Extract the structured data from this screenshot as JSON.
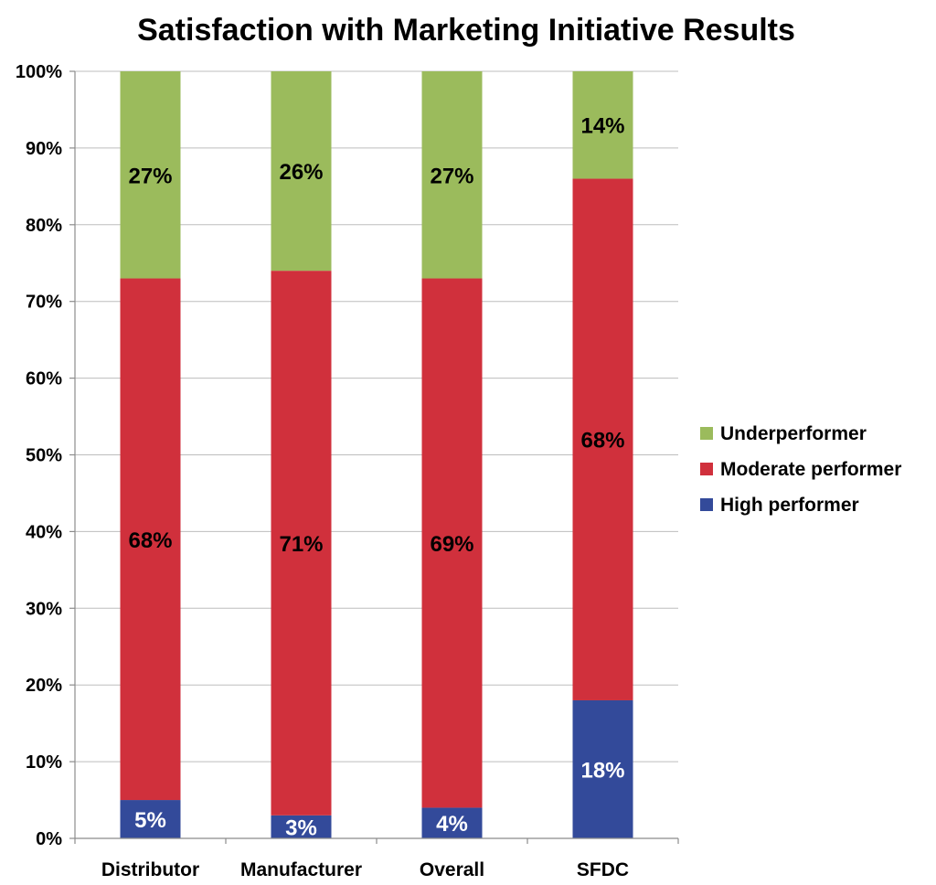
{
  "chart_data": {
    "type": "bar",
    "stacked": true,
    "title": "Satisfaction with Marketing Initiative Results",
    "categories": [
      "Distributor",
      "Manufacturer",
      "Overall",
      "SFDC"
    ],
    "series": [
      {
        "name": "High performer",
        "values": [
          5,
          3,
          4,
          18
        ],
        "labels": [
          "5%",
          "3%",
          "4%",
          "18%"
        ],
        "color": "#334a9a",
        "label_color": "#ffffff"
      },
      {
        "name": "Moderate performer",
        "values": [
          68,
          71,
          69,
          68
        ],
        "labels": [
          "68%",
          "71%",
          "69%",
          "68%"
        ],
        "color": "#d0303c",
        "label_color": "#000000"
      },
      {
        "name": "Underperformer",
        "values": [
          27,
          26,
          27,
          14
        ],
        "labels": [
          "27%",
          "26%",
          "27%",
          "14%"
        ],
        "color": "#9bbb5c",
        "label_color": "#000000"
      }
    ],
    "yticks": [
      "0%",
      "10%",
      "20%",
      "30%",
      "40%",
      "50%",
      "60%",
      "70%",
      "80%",
      "90%",
      "100%"
    ],
    "ylim": [
      0,
      100
    ],
    "grid": true,
    "legend": {
      "position": "right",
      "order": [
        "Underperformer",
        "Moderate performer",
        "High performer"
      ]
    }
  }
}
